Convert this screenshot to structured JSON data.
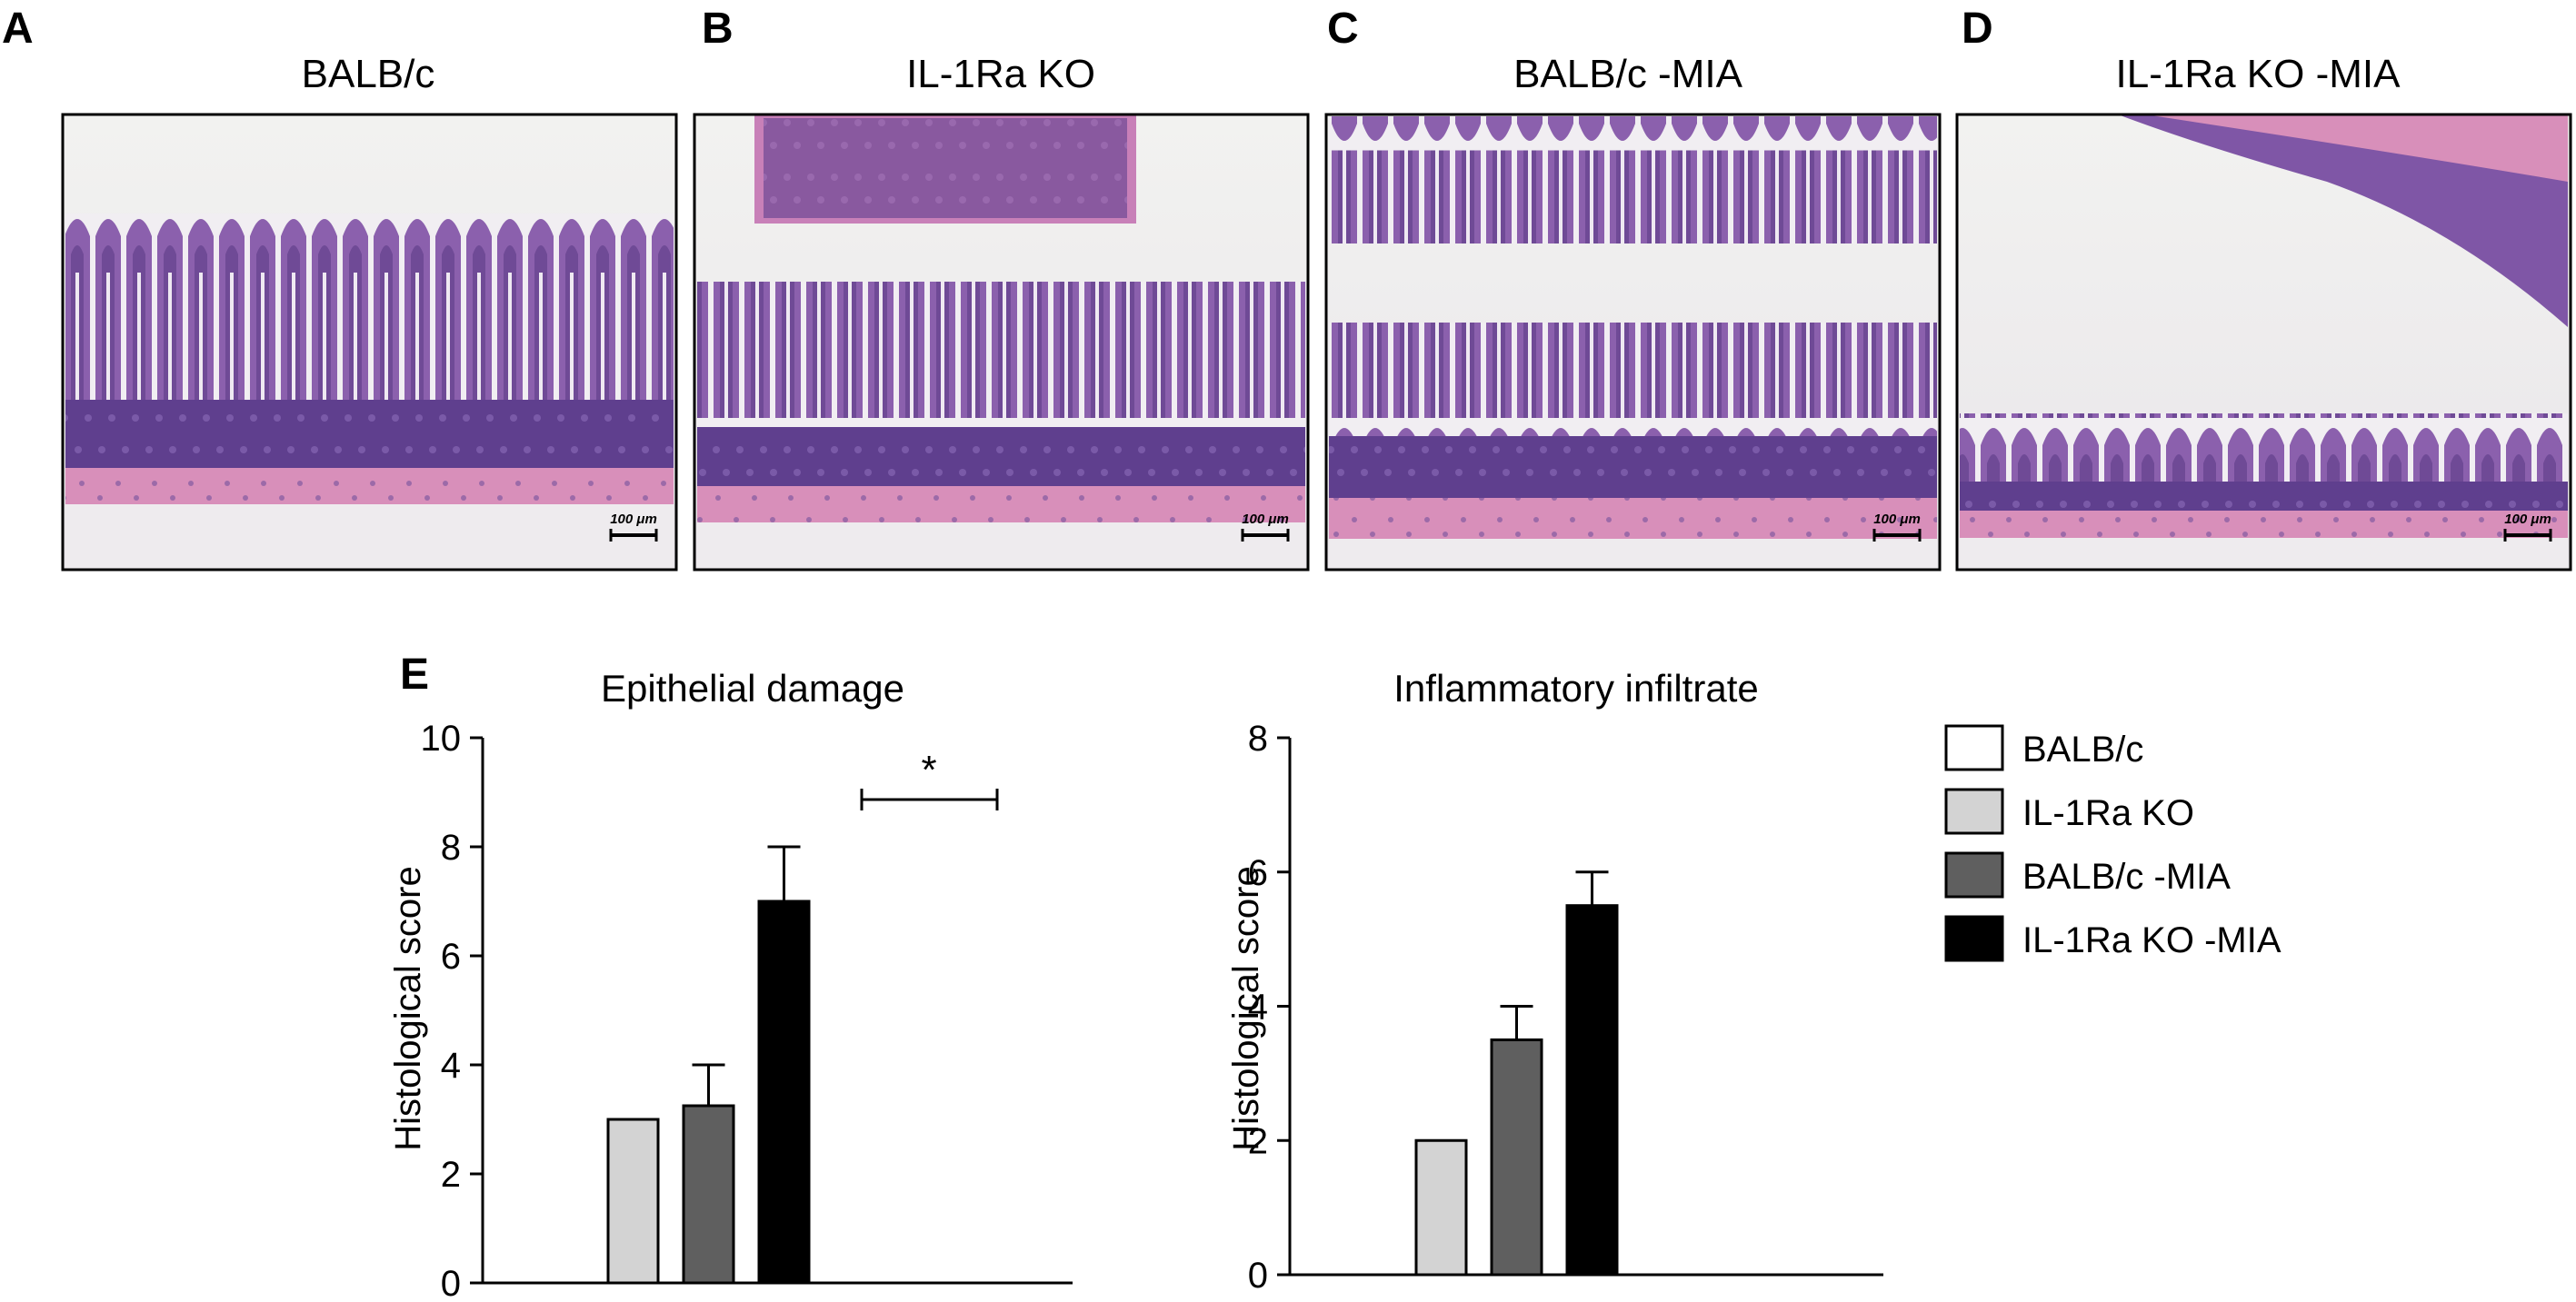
{
  "panels": [
    {
      "letter": "A",
      "title": "BALB/c",
      "scale_bar": "100 μm"
    },
    {
      "letter": "B",
      "title": "IL-1Ra KO",
      "scale_bar": "100 μm"
    },
    {
      "letter": "C",
      "title": "BALB/c -MIA",
      "scale_bar": "100 μm"
    },
    {
      "letter": "D",
      "title": "IL-1Ra KO -MIA",
      "scale_bar": "100 μm"
    }
  ],
  "panel_e_letter": "E",
  "legend": [
    {
      "label": "BALB/c",
      "color": "#ffffff"
    },
    {
      "label": "IL-1Ra KO",
      "color": "#d3d3d3"
    },
    {
      "label": "BALB/c -MIA",
      "color": "#5f5f5f"
    },
    {
      "label": "IL-1Ra KO -MIA",
      "color": "#000000"
    }
  ],
  "chart_data": [
    {
      "type": "bar",
      "title": "Epithelial damage",
      "ylabel": "Histological score",
      "xlabel": "",
      "categories": [
        "BALB/c",
        "IL-1Ra KO",
        "BALB/c -MIA",
        "IL-1Ra KO -MIA"
      ],
      "values": [
        0,
        3,
        3.25,
        7
      ],
      "errors": [
        0,
        0,
        0.75,
        1
      ],
      "ylim": [
        0,
        10
      ],
      "yticks": [
        0,
        2,
        4,
        6,
        8,
        10
      ],
      "significance": [
        {
          "between": [
            2,
            3
          ],
          "label": "*"
        }
      ]
    },
    {
      "type": "bar",
      "title": "Inflammatory infiltrate",
      "ylabel": "Histological score",
      "xlabel": "",
      "categories": [
        "BALB/c",
        "IL-1Ra KO",
        "BALB/c -MIA",
        "IL-1Ra KO -MIA"
      ],
      "values": [
        0,
        2,
        3.5,
        5.5
      ],
      "errors": [
        0,
        0,
        0.5,
        0.5
      ],
      "ylim": [
        0,
        8
      ],
      "yticks": [
        0,
        2,
        4,
        6,
        8
      ]
    }
  ]
}
